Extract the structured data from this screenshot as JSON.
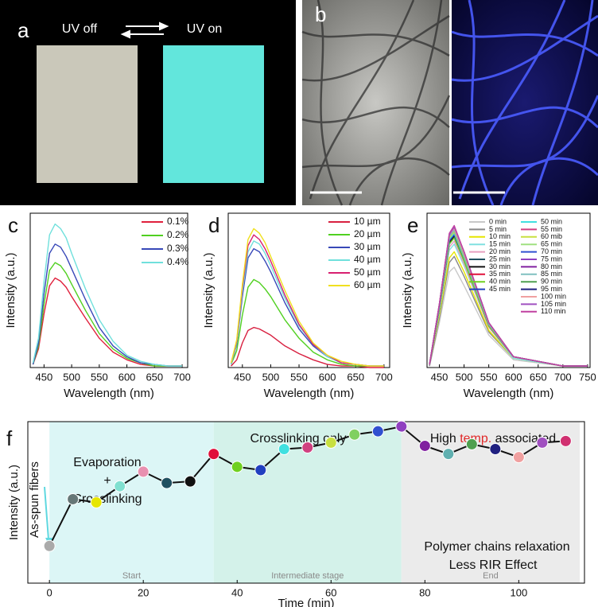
{
  "photos": {
    "panel": "a",
    "left_caption": "UV off",
    "right_caption": "UV on"
  },
  "micrographs": {
    "panel": "b"
  },
  "chart_data": [
    {
      "type": "line",
      "panel": "c",
      "xlabel": "Wavelength (nm)",
      "ylabel": "Intensity (a.u.)",
      "x": [
        430,
        440,
        450,
        460,
        470,
        480,
        490,
        500,
        525,
        550,
        575,
        600,
        625,
        650,
        675,
        700
      ],
      "xlim": [
        425,
        710
      ],
      "xticks": [
        450,
        500,
        550,
        600,
        650,
        700
      ],
      "ylim": [
        0,
        100
      ],
      "series": [
        {
          "name": "0.1%",
          "color": "#e0203c",
          "values": [
            2,
            12,
            35,
            53,
            58,
            56,
            52,
            46,
            32,
            19,
            10,
            5,
            2,
            1,
            1,
            1
          ]
        },
        {
          "name": "0.2%",
          "color": "#50d020",
          "values": [
            2,
            14,
            41,
            63,
            68,
            66,
            61,
            54,
            37,
            22,
            12,
            6,
            3,
            1,
            1,
            1
          ]
        },
        {
          "name": "0.3%",
          "color": "#3848b8",
          "values": [
            2,
            16,
            48,
            74,
            80,
            78,
            72,
            64,
            44,
            26,
            14,
            7,
            3,
            2,
            1,
            1
          ]
        },
        {
          "name": "0.4%",
          "color": "#70e0dc",
          "values": [
            3,
            19,
            56,
            86,
            93,
            90,
            84,
            74,
            51,
            31,
            17,
            8,
            4,
            2,
            1,
            1
          ]
        }
      ]
    },
    {
      "type": "line",
      "panel": "d",
      "xlabel": "Wavelength (nm)",
      "ylabel": "Intensity (a.u.)",
      "x": [
        430,
        440,
        450,
        460,
        470,
        480,
        490,
        500,
        525,
        550,
        575,
        600,
        625,
        650,
        675,
        700
      ],
      "xlim": [
        425,
        710
      ],
      "xticks": [
        450,
        500,
        550,
        600,
        650,
        700
      ],
      "ylim": [
        0,
        100
      ],
      "series": [
        {
          "name": "10 µm",
          "color": "#d82040",
          "values": [
            1,
            5,
            16,
            24,
            26,
            25,
            23,
            21,
            14,
            9,
            5,
            2,
            1,
            1,
            0,
            0
          ]
        },
        {
          "name": "20 µm",
          "color": "#50d020",
          "values": [
            2,
            11,
            34,
            52,
            57,
            55,
            51,
            46,
            31,
            19,
            10,
            5,
            2,
            1,
            1,
            1
          ]
        },
        {
          "name": "30 µm",
          "color": "#3848b8",
          "values": [
            2,
            15,
            46,
            71,
            77,
            75,
            69,
            62,
            42,
            25,
            14,
            7,
            3,
            2,
            1,
            1
          ]
        },
        {
          "name": "40 µm",
          "color": "#70e0dc",
          "values": [
            2,
            16,
            49,
            75,
            82,
            80,
            74,
            66,
            45,
            27,
            15,
            7,
            3,
            2,
            1,
            1
          ]
        },
        {
          "name": "50 µm",
          "color": "#d82070",
          "values": [
            3,
            17,
            52,
            79,
            86,
            83,
            77,
            69,
            47,
            28,
            15,
            8,
            3,
            2,
            1,
            1
          ]
        },
        {
          "name": "60 µm",
          "color": "#f0e020",
          "values": [
            3,
            18,
            54,
            83,
            90,
            87,
            81,
            72,
            50,
            30,
            16,
            8,
            4,
            2,
            1,
            1
          ]
        }
      ]
    },
    {
      "type": "line",
      "panel": "e",
      "xlabel": "Wavelength (nm)",
      "ylabel": "Intensity (a.u.)",
      "x": [
        430,
        450,
        470,
        480,
        500,
        550,
        600,
        700,
        750
      ],
      "xlim": [
        425,
        755
      ],
      "xticks": [
        450,
        500,
        550,
        600,
        650,
        700,
        750
      ],
      "ylim": [
        0,
        100
      ],
      "series": [
        {
          "name": "0 min",
          "color": "#c8c8c8",
          "values": [
            1,
            29,
            62,
            65,
            53,
            21,
            5,
            1,
            1
          ]
        },
        {
          "name": "5 min",
          "color": "#888888",
          "values": [
            1,
            32,
            68,
            72,
            59,
            23,
            6,
            1,
            1
          ]
        },
        {
          "name": "10 min",
          "color": "#e6e600",
          "values": [
            2,
            34,
            71,
            75,
            62,
            24,
            6,
            1,
            1
          ]
        },
        {
          "name": "15 min",
          "color": "#80e0e0",
          "values": [
            2,
            36,
            76,
            80,
            66,
            26,
            6,
            1,
            1
          ]
        },
        {
          "name": "20 min",
          "color": "#e8a0c0",
          "values": [
            2,
            37,
            78,
            82,
            67,
            26,
            7,
            1,
            1
          ]
        },
        {
          "name": "25 min",
          "color": "#205060",
          "values": [
            2,
            38,
            80,
            84,
            69,
            27,
            7,
            1,
            1
          ]
        },
        {
          "name": "30 min",
          "color": "#111111",
          "values": [
            2,
            38,
            81,
            85,
            70,
            27,
            7,
            1,
            1
          ]
        },
        {
          "name": "35 min",
          "color": "#e0103a",
          "values": [
            2,
            39,
            82,
            86,
            71,
            28,
            7,
            1,
            1
          ]
        },
        {
          "name": "40 min",
          "color": "#70d020",
          "values": [
            2,
            38,
            80,
            84,
            69,
            27,
            7,
            1,
            1
          ]
        },
        {
          "name": "45 min",
          "color": "#2040c0",
          "values": [
            2,
            39,
            82,
            86,
            71,
            28,
            7,
            1,
            1
          ]
        },
        {
          "name": "50 min",
          "color": "#40e0e0",
          "values": [
            2,
            39,
            83,
            87,
            71,
            28,
            7,
            1,
            1
          ]
        },
        {
          "name": "55 min",
          "color": "#d04080",
          "values": [
            2,
            40,
            84,
            88,
            72,
            28,
            7,
            1,
            1
          ]
        },
        {
          "name": "60 mib",
          "color": "#c8e040",
          "values": [
            2,
            40,
            84,
            88,
            72,
            28,
            7,
            1,
            1
          ]
        },
        {
          "name": "65 min",
          "color": "#a0e080",
          "values": [
            2,
            40,
            85,
            89,
            73,
            28,
            7,
            1,
            1
          ]
        },
        {
          "name": "70 min",
          "color": "#3050d0",
          "values": [
            2,
            40,
            85,
            89,
            73,
            28,
            7,
            1,
            1
          ]
        },
        {
          "name": "75 min",
          "color": "#9040c0",
          "values": [
            2,
            41,
            86,
            90,
            74,
            29,
            7,
            1,
            1
          ]
        },
        {
          "name": "80 min",
          "color": "#8020a0",
          "values": [
            2,
            41,
            86,
            90,
            74,
            29,
            7,
            1,
            1
          ]
        },
        {
          "name": "85 min",
          "color": "#80c0c0",
          "values": [
            2,
            40,
            85,
            89,
            73,
            28,
            7,
            1,
            1
          ]
        },
        {
          "name": "90 min",
          "color": "#50a050",
          "values": [
            2,
            41,
            86,
            90,
            74,
            29,
            7,
            1,
            1
          ]
        },
        {
          "name": "95 min",
          "color": "#202080",
          "values": [
            2,
            41,
            86,
            91,
            75,
            29,
            7,
            1,
            1
          ]
        },
        {
          "name": "100 min",
          "color": "#f0a0a0",
          "values": [
            2,
            41,
            86,
            90,
            74,
            29,
            7,
            1,
            1
          ]
        },
        {
          "name": "105 min",
          "color": "#a050c0",
          "values": [
            2,
            41,
            86,
            91,
            75,
            29,
            7,
            1,
            1
          ]
        },
        {
          "name": "110 min",
          "color": "#c040a0",
          "values": [
            2,
            41,
            87,
            92,
            75,
            29,
            7,
            1,
            1
          ]
        }
      ]
    },
    {
      "type": "line",
      "panel": "f",
      "xlabel": "Time (min)",
      "ylabel": "Intensity (a.u.)",
      "annotations": [
        "As-spun fibers"
      ],
      "x": [
        0,
        5,
        10,
        15,
        20,
        25,
        30,
        35,
        40,
        45,
        50,
        55,
        60,
        65,
        70,
        75,
        80,
        85,
        90,
        95,
        100,
        105,
        110
      ],
      "xlim": [
        -4.6,
        114
      ],
      "xticks": [
        0,
        20,
        40,
        60,
        80,
        100
      ],
      "ylim": [
        0,
        100
      ],
      "regions": [
        {
          "from": 0,
          "to": 35,
          "color": "#dcf6f6",
          "label": "Start",
          "notes": [
            [
              {
                "text": "Evaporation"
              }
            ],
            [
              {
                "text": "+"
              }
            ],
            [
              {
                "text": "Crosslinking"
              }
            ]
          ]
        },
        {
          "from": 35,
          "to": 75,
          "color": "#d4f2ea",
          "label": "Intermediate stage",
          "notes": [
            [
              {
                "text": "Crosslinking only"
              }
            ]
          ]
        },
        {
          "from": 75,
          "to": 113,
          "color": "#ebebeb",
          "label": "End",
          "notes": [
            [
              {
                "text": "High "
              },
              {
                "text": "temp.",
                "color": "#e02828"
              },
              {
                "text": " associated"
              }
            ],
            [
              {
                "text": "Polymer chains relaxation"
              }
            ],
            [
              {
                "text": "Less RIR Effect"
              }
            ]
          ]
        }
      ],
      "series": [
        {
          "color": "#111111",
          "values": [
            23,
            52,
            50,
            60,
            69,
            62,
            63,
            80,
            72,
            70,
            83,
            84,
            87,
            92,
            94,
            97,
            85,
            80,
            86,
            83,
            78,
            87,
            88
          ],
          "marker_colors": [
            "#aaaaaa",
            "#667777",
            "#e6e600",
            "#80e0d0",
            "#e890b0",
            "#205060",
            "#111111",
            "#e0103a",
            "#70d020",
            "#2040c0",
            "#40e0e0",
            "#d04080",
            "#c8e040",
            "#80d060",
            "#3050d0",
            "#9040c0",
            "#8020a0",
            "#60b0b0",
            "#50a050",
            "#202080",
            "#f0a0a0",
            "#a050c0",
            "#d03070"
          ]
        }
      ]
    }
  ]
}
